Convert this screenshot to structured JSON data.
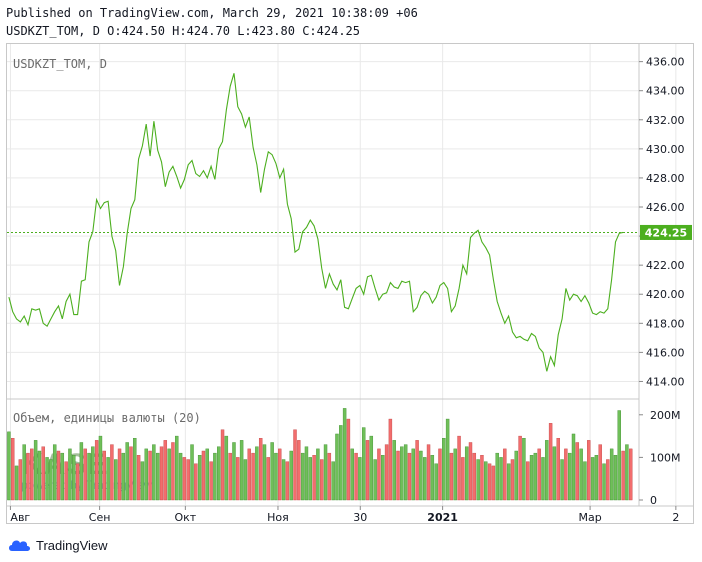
{
  "header": {
    "published": "Published on TradingView.com, March 29, 2021 10:38:09 +06",
    "ohlc": "USDKZT_TOM, D O:424.50 H:424.70 L:423.80 C:424.25"
  },
  "footer": {
    "brand": "TradingView"
  },
  "watermark": {
    "text": "KASE",
    "sub": "powered by TradingView"
  },
  "colors": {
    "line": "#4caf1f",
    "up": "#6fbf59",
    "down": "#f26d6d",
    "last_price_bg": "#4caf1f",
    "grid": "#e9e9e9",
    "axis_text": "#131722"
  },
  "chart_data": [
    {
      "type": "line",
      "title": "USDKZT_TOM, D",
      "ylim": [
        413,
        436.8
      ],
      "yticks": [
        414,
        416,
        418,
        420,
        422,
        424,
        426,
        428,
        430,
        432,
        434,
        436
      ],
      "ytick_labels": [
        "414.00",
        "416.00",
        "418.00",
        "420.00",
        "422.00",
        "424.00",
        "426.00",
        "428.00",
        "430.00",
        "432.00",
        "434.00",
        "436.00"
      ],
      "x_axis_labels": [
        "Авг",
        "Сен",
        "Окт",
        "Ноя",
        "30",
        "2021",
        "Мар",
        "2"
      ],
      "last_value_label": "424.25",
      "last_value": 424.25,
      "values": [
        419.8,
        418.8,
        418.3,
        418.1,
        418.5,
        417.9,
        419.0,
        418.9,
        419.0,
        418.0,
        417.8,
        418.3,
        418.8,
        419.2,
        418.3,
        419.5,
        420.0,
        418.6,
        418.6,
        420.9,
        421.0,
        423.6,
        424.3,
        426.5,
        425.9,
        426.3,
        426.4,
        424.0,
        423.0,
        420.6,
        421.9,
        424.2,
        425.9,
        426.5,
        429.3,
        430.2,
        431.7,
        429.5,
        431.9,
        429.9,
        429.1,
        427.4,
        428.4,
        428.8,
        428.1,
        427.3,
        427.9,
        428.9,
        429.2,
        428.3,
        428.1,
        428.5,
        428.0,
        428.8,
        427.9,
        430.0,
        430.5,
        432.7,
        434.3,
        435.2,
        432.9,
        432.4,
        431.5,
        432.2,
        430.1,
        428.9,
        427.0,
        428.6,
        429.8,
        429.6,
        429.0,
        428.0,
        428.6,
        426.2,
        425.2,
        422.9,
        423.1,
        424.3,
        424.6,
        425.1,
        424.7,
        423.8,
        421.8,
        420.4,
        421.4,
        420.7,
        420.3,
        421.0,
        419.1,
        419.0,
        419.7,
        420.4,
        420.6,
        420.0,
        421.2,
        421.3,
        420.4,
        419.6,
        420.0,
        420.1,
        420.8,
        420.5,
        420.4,
        420.9,
        420.8,
        420.9,
        418.8,
        419.1,
        419.9,
        420.2,
        420.0,
        419.4,
        419.8,
        420.6,
        420.8,
        420.4,
        418.8,
        419.2,
        420.4,
        422.0,
        421.4,
        423.9,
        424.2,
        424.4,
        423.6,
        423.2,
        422.7,
        421.0,
        419.5,
        418.7,
        418.0,
        418.5,
        417.4,
        417.0,
        417.1,
        416.9,
        416.8,
        417.3,
        417.1,
        416.3,
        416.0,
        414.7,
        415.7,
        415.1,
        417.2,
        418.3,
        420.4,
        419.6,
        420.0,
        419.9,
        419.5,
        419.9,
        419.4,
        418.7,
        418.6,
        418.8,
        418.7,
        419.0,
        421.0,
        423.6,
        424.2,
        424.25
      ]
    },
    {
      "type": "bar",
      "title": "Объем, единицы валюты (20)",
      "ylim": [
        0,
        230
      ],
      "yticks": [
        0,
        100,
        200
      ],
      "ytick_labels": [
        "0",
        "100M",
        "200M"
      ],
      "values": [
        160,
        145,
        80,
        95,
        130,
        110,
        120,
        140,
        115,
        125,
        100,
        95,
        130,
        115,
        110,
        90,
        120,
        105,
        85,
        135,
        120,
        110,
        125,
        140,
        150,
        115,
        100,
        130,
        95,
        120,
        110,
        135,
        125,
        145,
        105,
        90,
        120,
        115,
        130,
        110,
        125,
        140,
        120,
        135,
        150,
        110,
        100,
        95,
        130,
        85,
        105,
        115,
        120,
        90,
        110,
        125,
        165,
        150,
        110,
        135,
        100,
        140,
        95,
        120,
        110,
        125,
        145,
        130,
        100,
        135,
        110,
        120,
        95,
        90,
        115,
        165,
        140,
        110,
        125,
        100,
        105,
        120,
        95,
        130,
        110,
        90,
        155,
        175,
        215,
        190,
        120,
        110,
        100,
        170,
        140,
        150,
        95,
        120,
        105,
        130,
        190,
        140,
        115,
        125,
        130,
        110,
        120,
        140,
        115,
        100,
        130,
        105,
        85,
        120,
        145,
        190,
        110,
        120,
        150,
        100,
        125,
        135,
        110,
        95,
        105,
        90,
        85,
        80,
        110,
        100,
        120,
        85,
        95,
        115,
        150,
        145,
        90,
        105,
        110,
        120,
        100,
        140,
        180,
        125,
        145,
        95,
        120,
        110,
        155,
        135,
        120,
        90,
        140,
        100,
        105,
        130,
        85,
        95,
        120,
        105,
        210,
        115,
        130,
        120
      ],
      "directions": [
        "u",
        "d",
        "u",
        "d",
        "u",
        "d",
        "d",
        "u",
        "u",
        "d",
        "u",
        "u",
        "u",
        "d",
        "u",
        "d",
        "u",
        "u",
        "d",
        "u",
        "d",
        "u",
        "u",
        "d",
        "u",
        "d",
        "u",
        "d",
        "u",
        "d",
        "u",
        "u",
        "d",
        "u",
        "d",
        "u",
        "u",
        "d",
        "u",
        "u",
        "d",
        "d",
        "u",
        "d",
        "u",
        "u",
        "d",
        "d",
        "u",
        "d",
        "u",
        "d",
        "u",
        "d",
        "u",
        "u",
        "d",
        "u",
        "d",
        "u",
        "d",
        "u",
        "u",
        "d",
        "d",
        "u",
        "d",
        "u",
        "d",
        "u",
        "u",
        "d",
        "u",
        "d",
        "u",
        "d",
        "d",
        "u",
        "u",
        "u",
        "d",
        "u",
        "d",
        "u",
        "d",
        "u",
        "u",
        "u",
        "u",
        "d",
        "u",
        "d",
        "u",
        "u",
        "d",
        "u",
        "u",
        "d",
        "u",
        "d",
        "d",
        "u",
        "d",
        "u",
        "u",
        "d",
        "u",
        "d",
        "u",
        "u",
        "d",
        "u",
        "u",
        "d",
        "u",
        "u",
        "d",
        "u",
        "d",
        "d",
        "u",
        "d",
        "d",
        "u",
        "d",
        "u",
        "d",
        "d",
        "u",
        "u",
        "d",
        "u",
        "d",
        "u",
        "d",
        "u",
        "d",
        "u",
        "u",
        "d",
        "u",
        "u",
        "d",
        "u",
        "d",
        "u",
        "d",
        "u",
        "u",
        "d",
        "u",
        "u",
        "d",
        "u",
        "u",
        "d",
        "u",
        "d",
        "u",
        "u",
        "u",
        "d",
        "u",
        "d"
      ]
    }
  ]
}
